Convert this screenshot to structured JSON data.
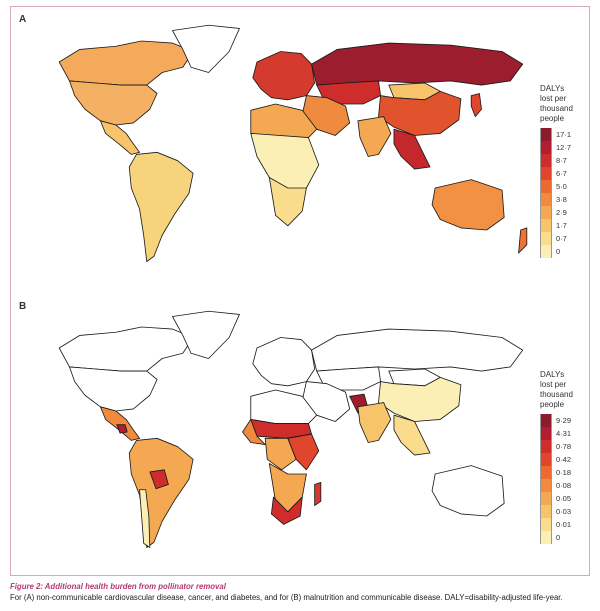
{
  "figure": {
    "caption_title": "Figure 2: Additional health burden from pollinator removal",
    "caption_text": "For (A) non-communicable cardiovascular disease, cancer, and diabetes, and for (B) malnutrition and communicable disease. DALY=disability-adjusted life-year."
  },
  "panels": [
    {
      "label": "A",
      "legend_title": [
        "DALYs",
        "lost per",
        "thousand",
        "people"
      ],
      "legend_ticks": [
        "17·1",
        "12·7",
        "8·7",
        "6·7",
        "5·0",
        "3·8",
        "2·9",
        "1·7",
        "0·7",
        "0"
      ],
      "legend_colors": [
        "#8e1b2c",
        "#b01e2f",
        "#cf2c2c",
        "#e0462b",
        "#ea6a32",
        "#f08a3f",
        "#f4a852",
        "#f7c46c",
        "#f9dc8c",
        "#fcefb6"
      ],
      "regions": {
        "north_america": "#f4b063",
        "canada": "#f4aa5a",
        "greenland": "#ffffff",
        "central_america": "#f7c46c",
        "south_america": "#f8d37e",
        "europe": "#d53a2e",
        "russia": "#9c1d2e",
        "central_asia": "#cf2c2c",
        "mongolia": "#f7c46c",
        "china": "#e0532c",
        "se_asia": "#c5282c",
        "india": "#f4a852",
        "middle_east": "#f08a3f",
        "north_africa": "#f4a852",
        "sub_saharan_africa": "#fcefb6",
        "southern_africa": "#f9dc8c",
        "australia": "#f29044",
        "new_zealand": "#ec7236",
        "japan": "#e0462b"
      }
    },
    {
      "label": "B",
      "legend_title": [
        "DALYs",
        "lost per",
        "thousand",
        "people"
      ],
      "legend_ticks": [
        "9·29",
        "4·31",
        "0·78",
        "0·42",
        "0·18",
        "0·08",
        "0·05",
        "0·03",
        "0·01",
        "0"
      ],
      "legend_colors": [
        "#8e1b2c",
        "#b01e2f",
        "#cf2c2c",
        "#e0462b",
        "#ea6a32",
        "#f08a3f",
        "#f4a852",
        "#f7c46c",
        "#f9dc8c",
        "#fcefb6"
      ],
      "regions": {
        "north_america": "#ffffff",
        "canada": "#ffffff",
        "greenland": "#ffffff",
        "central_america": "#f08a3f",
        "guatemala": "#b01e2f",
        "south_america": "#f4a852",
        "bolivia": "#cf2c2c",
        "chile": "#fcefb6",
        "europe": "#ffffff",
        "russia": "#ffffff",
        "central_asia": "#ffffff",
        "mongolia": "#ffffff",
        "china": "#fcefb6",
        "se_asia": "#f9dc8c",
        "india": "#f7c46c",
        "pakistan": "#a11d2e",
        "middle_east": "#ffffff",
        "north_africa": "#ffffff",
        "sahel": "#cf2c2c",
        "west_africa": "#f08a3f",
        "central_africa": "#f4a852",
        "east_africa": "#e0462b",
        "southern_africa": "#f4a852",
        "south_africa": "#cf2c2c",
        "madagascar": "#d53a2e",
        "australia": "#ffffff"
      }
    }
  ]
}
